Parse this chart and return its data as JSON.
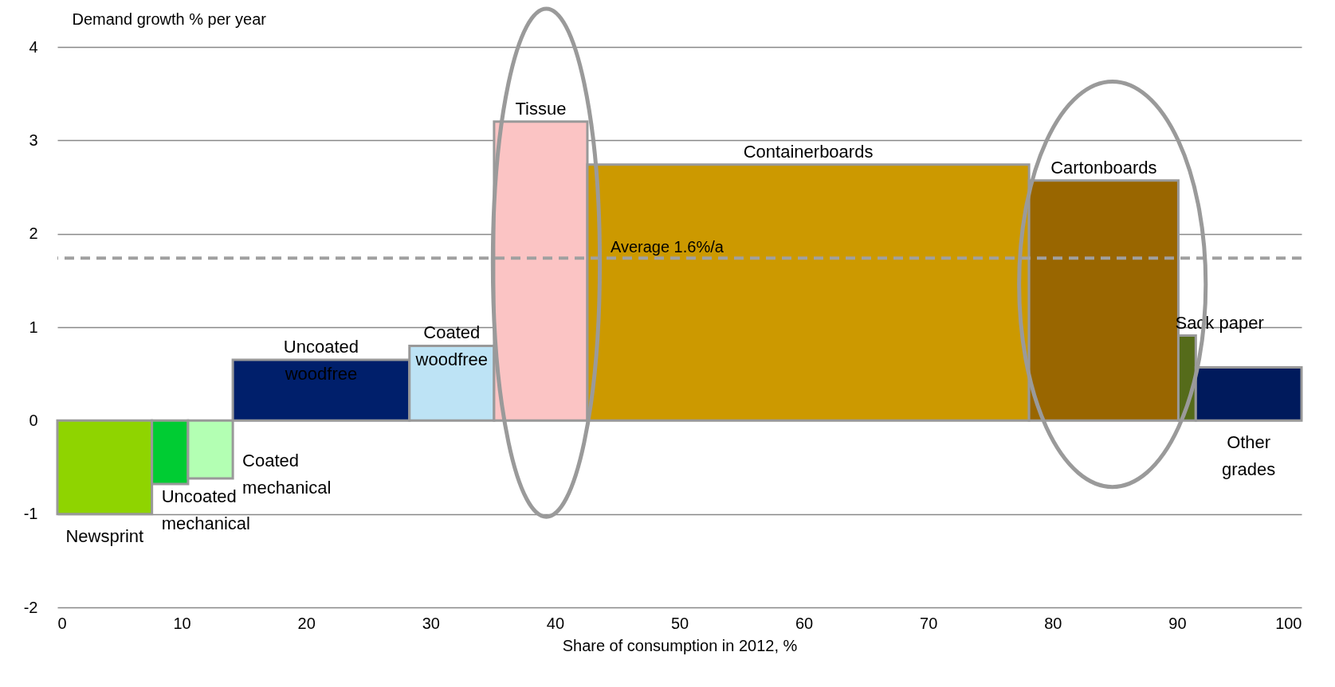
{
  "chart_data": {
    "type": "histogram",
    "ylabel": "Demand growth % per year",
    "xlabel": "Share of consumption in 2012, %",
    "bins": [
      0,
      7.6,
      10.5,
      14.1,
      28.3,
      35.1,
      42.6,
      78.1,
      90.1,
      91.5,
      100
    ],
    "values": [
      -1.0,
      -0.68,
      -0.62,
      0.65,
      0.8,
      3.2,
      2.74,
      2.57,
      0.91,
      0.57
    ],
    "colors": [
      "#8fd400",
      "#00cc33",
      "#b3ffb3",
      "#001f6b",
      "#bde3f5",
      "#fbc4c4",
      "#cc9900",
      "#996600",
      "#556b1a",
      "#001a5c"
    ],
    "xlim": [
      0,
      100
    ],
    "xticks": [
      0,
      10,
      20,
      30,
      40,
      50,
      60,
      70,
      80,
      90,
      100
    ],
    "ylim": [
      -2,
      4
    ],
    "yticks": [
      -2,
      -1,
      0,
      1,
      2,
      3,
      4
    ],
    "grid": "y",
    "ref_lines": [
      {
        "axis": "y",
        "value": 1.74,
        "label": "Average 1.6%/a",
        "color": "#a0a0a0",
        "line_style": "dashed"
      }
    ],
    "annotations": [
      "Newsprint",
      "Uncoated\nmechanical",
      "Coated\nmechanical",
      "Uncoated\nwoodfree",
      "Coated\nwoodfree",
      "Tissue",
      "Containerboards",
      "Cartonboards",
      "Sack paper",
      "Other\ngrades"
    ]
  }
}
